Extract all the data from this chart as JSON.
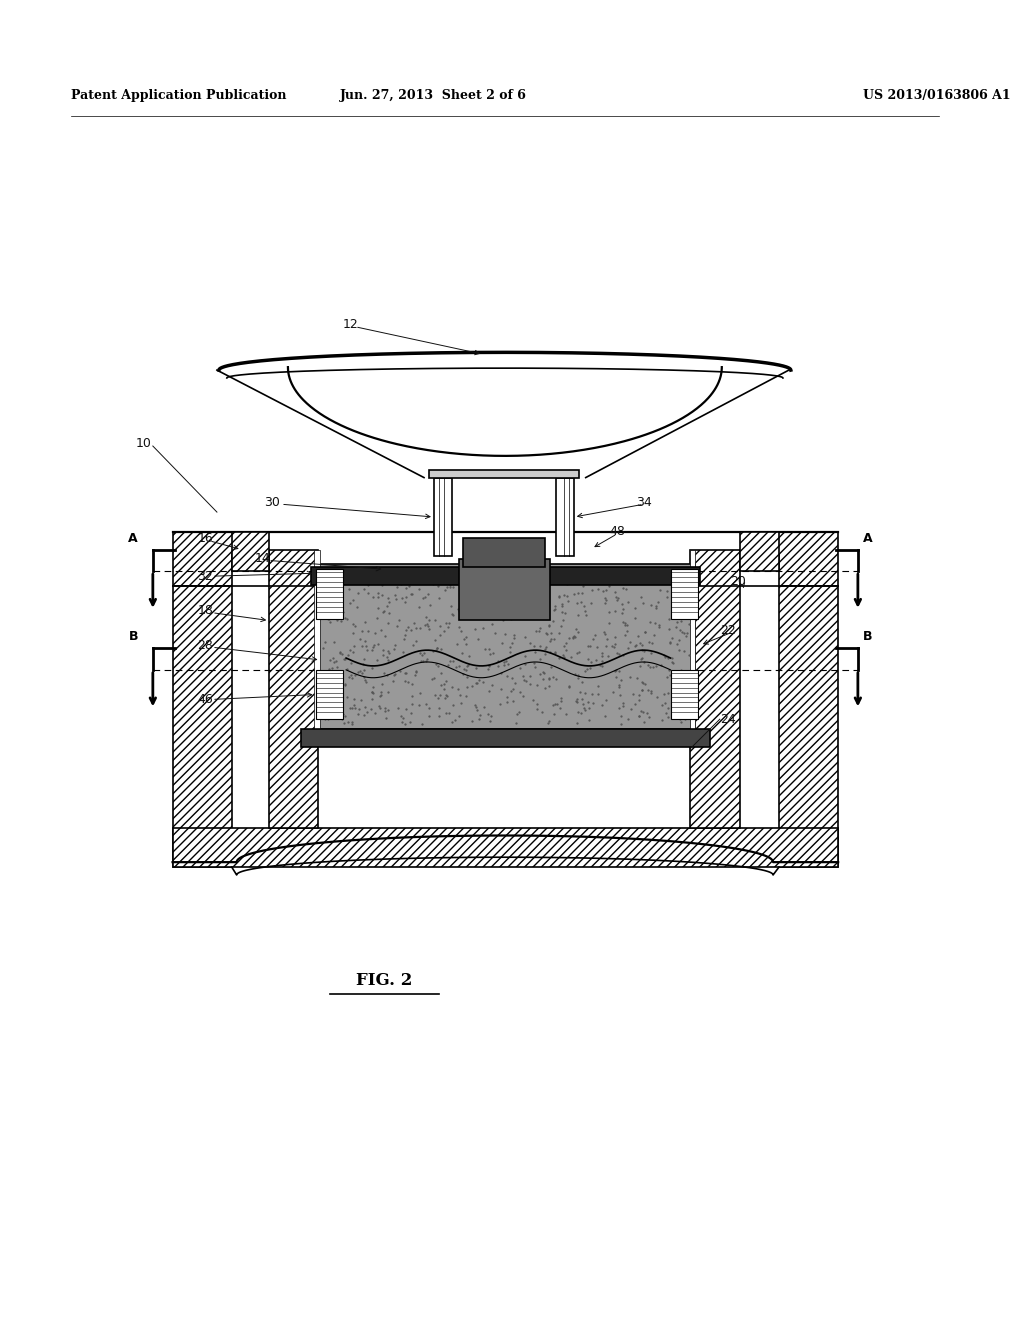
{
  "header_left": "Patent Application Publication",
  "header_center": "Jun. 27, 2013  Sheet 2 of 6",
  "header_right": "US 2013/0163806 A1",
  "figure_label": "FIG. 2",
  "bg_color": "#ffffff",
  "line_color": "#000000"
}
